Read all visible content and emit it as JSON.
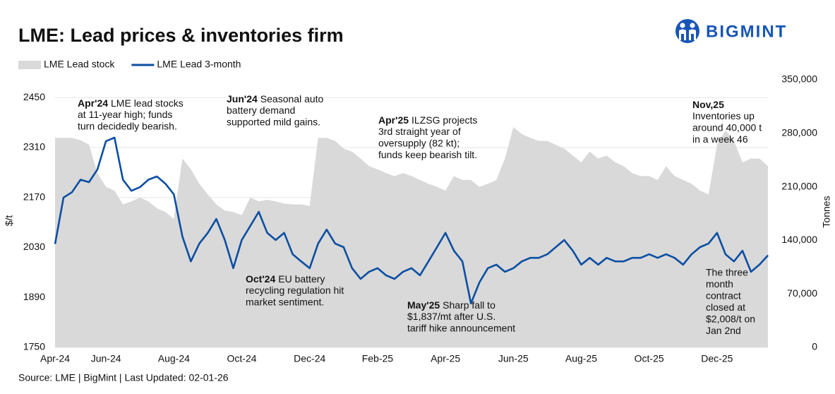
{
  "chart_data": {
    "type": "area-line",
    "title": "LME: Lead prices & inventories firm",
    "logo": "BIGMINT",
    "source": "Source: LME | BigMint | Last Updated: 02-01-26",
    "y_label": "$/t",
    "y2_label": "Tonnes",
    "categories": [
      "Apr-24",
      null,
      null,
      null,
      null,
      null,
      "Jun-24",
      null,
      null,
      null,
      null,
      null,
      null,
      null,
      "Aug-24",
      null,
      null,
      null,
      null,
      null,
      null,
      null,
      "Oct-24",
      null,
      null,
      null,
      null,
      null,
      null,
      null,
      "Dec-24",
      null,
      null,
      null,
      null,
      null,
      null,
      null,
      "Feb-25",
      null,
      null,
      null,
      null,
      null,
      null,
      null,
      "Apr-25",
      null,
      null,
      null,
      null,
      null,
      null,
      null,
      "Jun-25",
      null,
      null,
      null,
      null,
      null,
      null,
      null,
      "Aug-25",
      null,
      null,
      null,
      null,
      null,
      null,
      null,
      "Oct-25",
      null,
      null,
      null,
      null,
      null,
      null,
      null,
      "Dec-25",
      null,
      null,
      null,
      null,
      null,
      null
    ],
    "series": [
      {
        "name": "LME Lead stock",
        "type": "area",
        "axis": "y2",
        "color": "#d9d9d9",
        "values": [
          274000,
          274000,
          274000,
          271000,
          265000,
          228000,
          210000,
          205000,
          187000,
          191000,
          196000,
          191000,
          182000,
          177000,
          168000,
          247000,
          233000,
          214000,
          200000,
          187000,
          179000,
          177000,
          173000,
          196000,
          191000,
          193000,
          191000,
          188000,
          187000,
          187000,
          185000,
          274000,
          274000,
          270000,
          260000,
          256000,
          247000,
          237000,
          233000,
          228000,
          224000,
          228000,
          224000,
          219000,
          214000,
          210000,
          205000,
          224000,
          219000,
          219000,
          210000,
          214000,
          219000,
          247000,
          288000,
          279000,
          274000,
          270000,
          270000,
          265000,
          260000,
          251000,
          242000,
          256000,
          247000,
          251000,
          242000,
          237000,
          228000,
          224000,
          224000,
          219000,
          237000,
          224000,
          219000,
          214000,
          205000,
          200000,
          265000,
          284000,
          270000,
          242000,
          247000,
          247000,
          237000
        ]
      },
      {
        "name": "LME Lead 3-month",
        "type": "line",
        "axis": "y",
        "color": "#0b4ea2",
        "values": [
          2040,
          2170,
          2185,
          2220,
          2213,
          2249,
          2328,
          2338,
          2220,
          2189,
          2199,
          2220,
          2229,
          2209,
          2179,
          2061,
          1991,
          2041,
          2071,
          2110,
          2051,
          1972,
          2051,
          2090,
          2130,
          2071,
          2051,
          2071,
          2011,
          1991,
          1972,
          2041,
          2080,
          2041,
          2031,
          1972,
          1942,
          1962,
          1972,
          1952,
          1942,
          1962,
          1972,
          1952,
          1991,
          2031,
          2071,
          2021,
          1991,
          1873,
          1932,
          1972,
          1982,
          1962,
          1972,
          1991,
          2001,
          2001,
          2011,
          2031,
          2051,
          2021,
          1982,
          2001,
          1982,
          2001,
          1991,
          1991,
          2001,
          2001,
          2011,
          2001,
          2011,
          2001,
          1982,
          2011,
          2031,
          2041,
          2071,
          2011,
          1991,
          2021,
          1962,
          1982,
          2008
        ]
      }
    ],
    "ylim": [
      1750,
      2500
    ],
    "yticks": [
      1750,
      1890,
      2030,
      2170,
      2310,
      2450
    ],
    "y2lim": [
      0,
      350000
    ],
    "y2ticks": [
      0,
      {
        "value": 70000,
        "label": "70,000"
      },
      {
        "value": 140000,
        "label": "140,000"
      },
      {
        "value": 210000,
        "label": "210,000"
      },
      {
        "value": 280000,
        "label": "280,000"
      },
      {
        "value": 350000,
        "label": "350,000"
      }
    ],
    "grid": true,
    "legend": "top-left",
    "annotations": [
      {
        "head": "Apr'24",
        "lines": [
          "LME lead stocks",
          "at 11-year high; funds",
          "turn decidedly bearish."
        ]
      },
      {
        "head": "Jun'24",
        "lines": [
          "Seasonal auto",
          "battery demand",
          "supported mild gains."
        ]
      },
      {
        "head": "Apr'25",
        "lines": [
          "ILZSG projects",
          "3rd straight year of",
          "oversupply (82 kt);",
          "funds keep bearish tilt."
        ]
      },
      {
        "head": "Nov,25",
        "head_own_line": true,
        "lines": [
          "Inventories up",
          "around 40,000 t",
          "in a week 46"
        ]
      },
      {
        "head": "Oct'24",
        "lines": [
          "EU battery",
          "recycling regulation hit",
          "market sentiment."
        ]
      },
      {
        "head": "May'25",
        "lines": [
          "Sharp fall to",
          "$1,837/mt after U.S.",
          "tariff hike announcement"
        ]
      },
      {
        "lines": [
          "The three",
          "month",
          "contract",
          "closed at",
          "$2,008/t on",
          "Jan 2nd"
        ]
      }
    ]
  }
}
